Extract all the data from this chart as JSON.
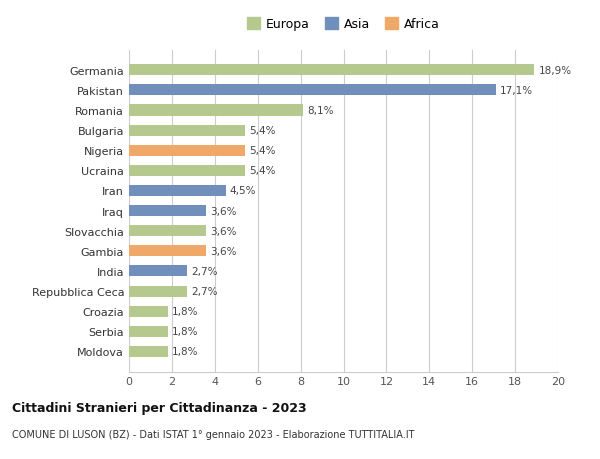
{
  "countries": [
    "Moldova",
    "Serbia",
    "Croazia",
    "Repubblica Ceca",
    "India",
    "Gambia",
    "Slovacchia",
    "Iraq",
    "Iran",
    "Ucraina",
    "Nigeria",
    "Bulgaria",
    "Romania",
    "Pakistan",
    "Germania"
  ],
  "values": [
    1.8,
    1.8,
    1.8,
    2.7,
    2.7,
    3.6,
    3.6,
    3.6,
    4.5,
    5.4,
    5.4,
    5.4,
    8.1,
    17.1,
    18.9
  ],
  "labels": [
    "1,8%",
    "1,8%",
    "1,8%",
    "2,7%",
    "2,7%",
    "3,6%",
    "3,6%",
    "3,6%",
    "4,5%",
    "5,4%",
    "5,4%",
    "5,4%",
    "8,1%",
    "17,1%",
    "18,9%"
  ],
  "continents": [
    "Europa",
    "Europa",
    "Europa",
    "Europa",
    "Asia",
    "Africa",
    "Europa",
    "Asia",
    "Asia",
    "Europa",
    "Africa",
    "Europa",
    "Europa",
    "Asia",
    "Europa"
  ],
  "colors": {
    "Europa": "#b5c98e",
    "Asia": "#7090bb",
    "Africa": "#f0a868"
  },
  "title": "Cittadini Stranieri per Cittadinanza - 2023",
  "subtitle": "COMUNE DI LUSON (BZ) - Dati ISTAT 1° gennaio 2023 - Elaborazione TUTTITALIA.IT",
  "xlim": [
    0,
    20
  ],
  "xticks": [
    0,
    2,
    4,
    6,
    8,
    10,
    12,
    14,
    16,
    18,
    20
  ],
  "background_color": "#ffffff",
  "grid_color": "#cccccc"
}
